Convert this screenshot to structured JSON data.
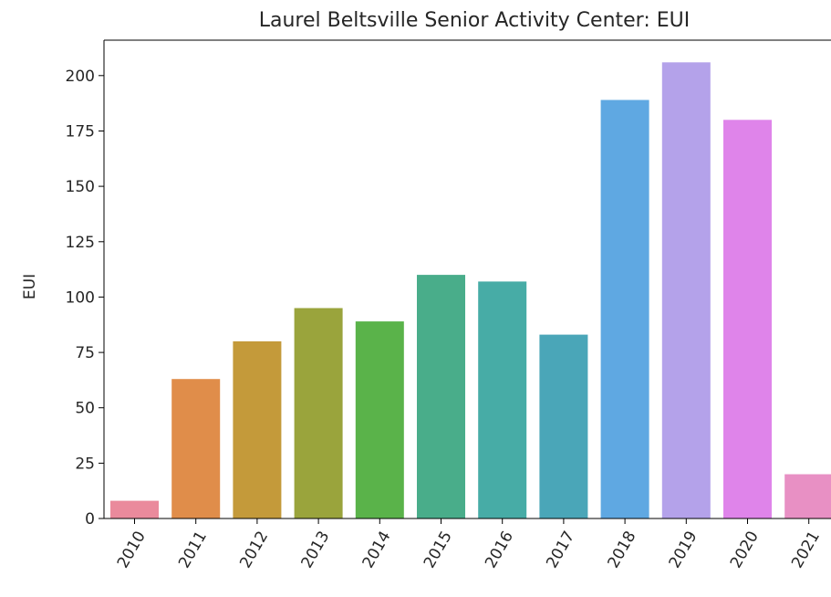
{
  "chart_data": {
    "type": "bar",
    "title": "Laurel Beltsville Senior Activity Center: EUI",
    "xlabel": "",
    "ylabel": "EUI",
    "categories": [
      "2010",
      "2011",
      "2012",
      "2013",
      "2014",
      "2015",
      "2016",
      "2017",
      "2018",
      "2019",
      "2020",
      "2021"
    ],
    "values": [
      8,
      63,
      80,
      95,
      89,
      110,
      107,
      83,
      189,
      206,
      180,
      20
    ],
    "colors": [
      "#ea8a9c",
      "#e08d4a",
      "#c49a3a",
      "#9aa43c",
      "#5ab34a",
      "#49ad8a",
      "#47aca6",
      "#4aa6b8",
      "#5fa8e2",
      "#b4a2ea",
      "#df84ea",
      "#e890c4"
    ],
    "ylim": [
      0,
      216
    ],
    "yticks": [
      0,
      25,
      50,
      75,
      100,
      125,
      150,
      175,
      200
    ],
    "grid": false,
    "legend": "none"
  }
}
